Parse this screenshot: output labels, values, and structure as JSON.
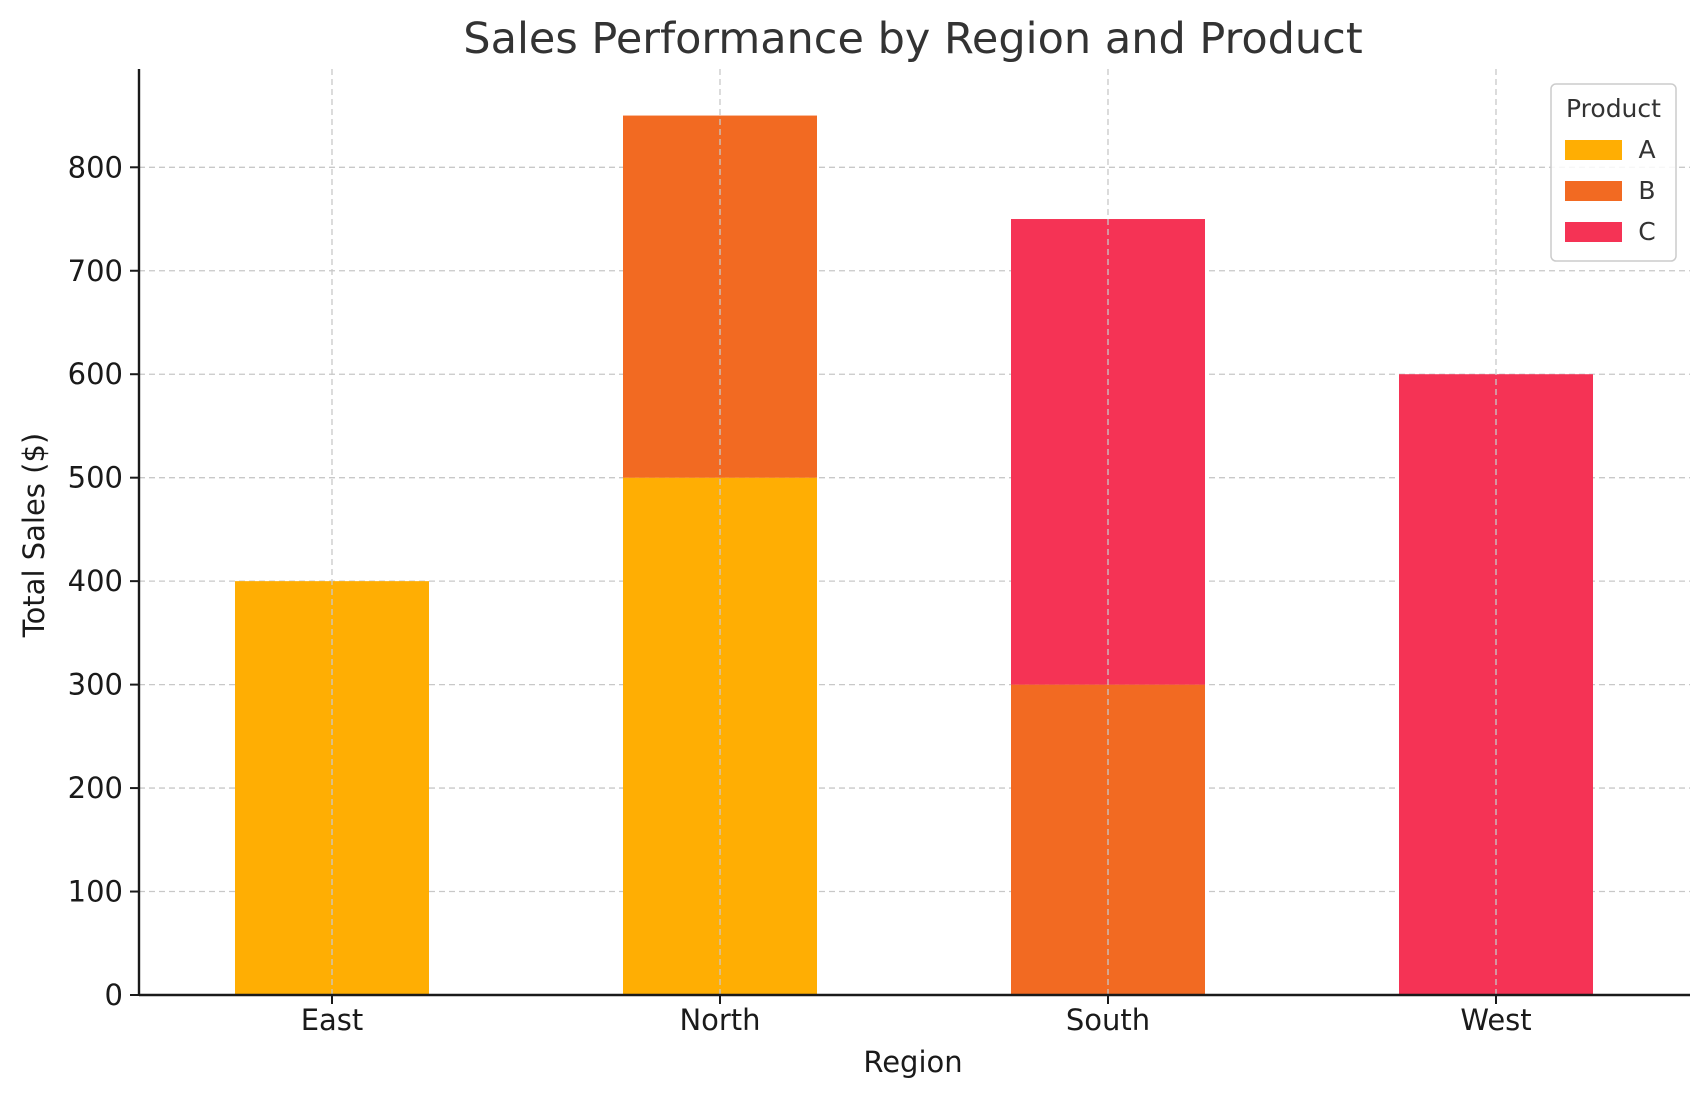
{
  "chart_data": {
    "type": "bar",
    "stacked": true,
    "title": "Sales Performance by Region and Product",
    "xlabel": "Region",
    "ylabel": "Total Sales ($)",
    "categories": [
      "East",
      "North",
      "South",
      "West"
    ],
    "series": [
      {
        "name": "A",
        "color": "#FFAE03",
        "values": [
          400,
          500,
          0,
          0
        ]
      },
      {
        "name": "B",
        "color": "#F26A22",
        "values": [
          0,
          350,
          300,
          0
        ]
      },
      {
        "name": "C",
        "color": "#F53355",
        "values": [
          0,
          0,
          450,
          600
        ]
      }
    ],
    "ylim": [
      0,
      895
    ],
    "yticks": [
      0,
      100,
      200,
      300,
      400,
      500,
      600,
      700,
      800
    ],
    "grid": true,
    "legend": {
      "title": "Product",
      "position": "top-right"
    }
  }
}
